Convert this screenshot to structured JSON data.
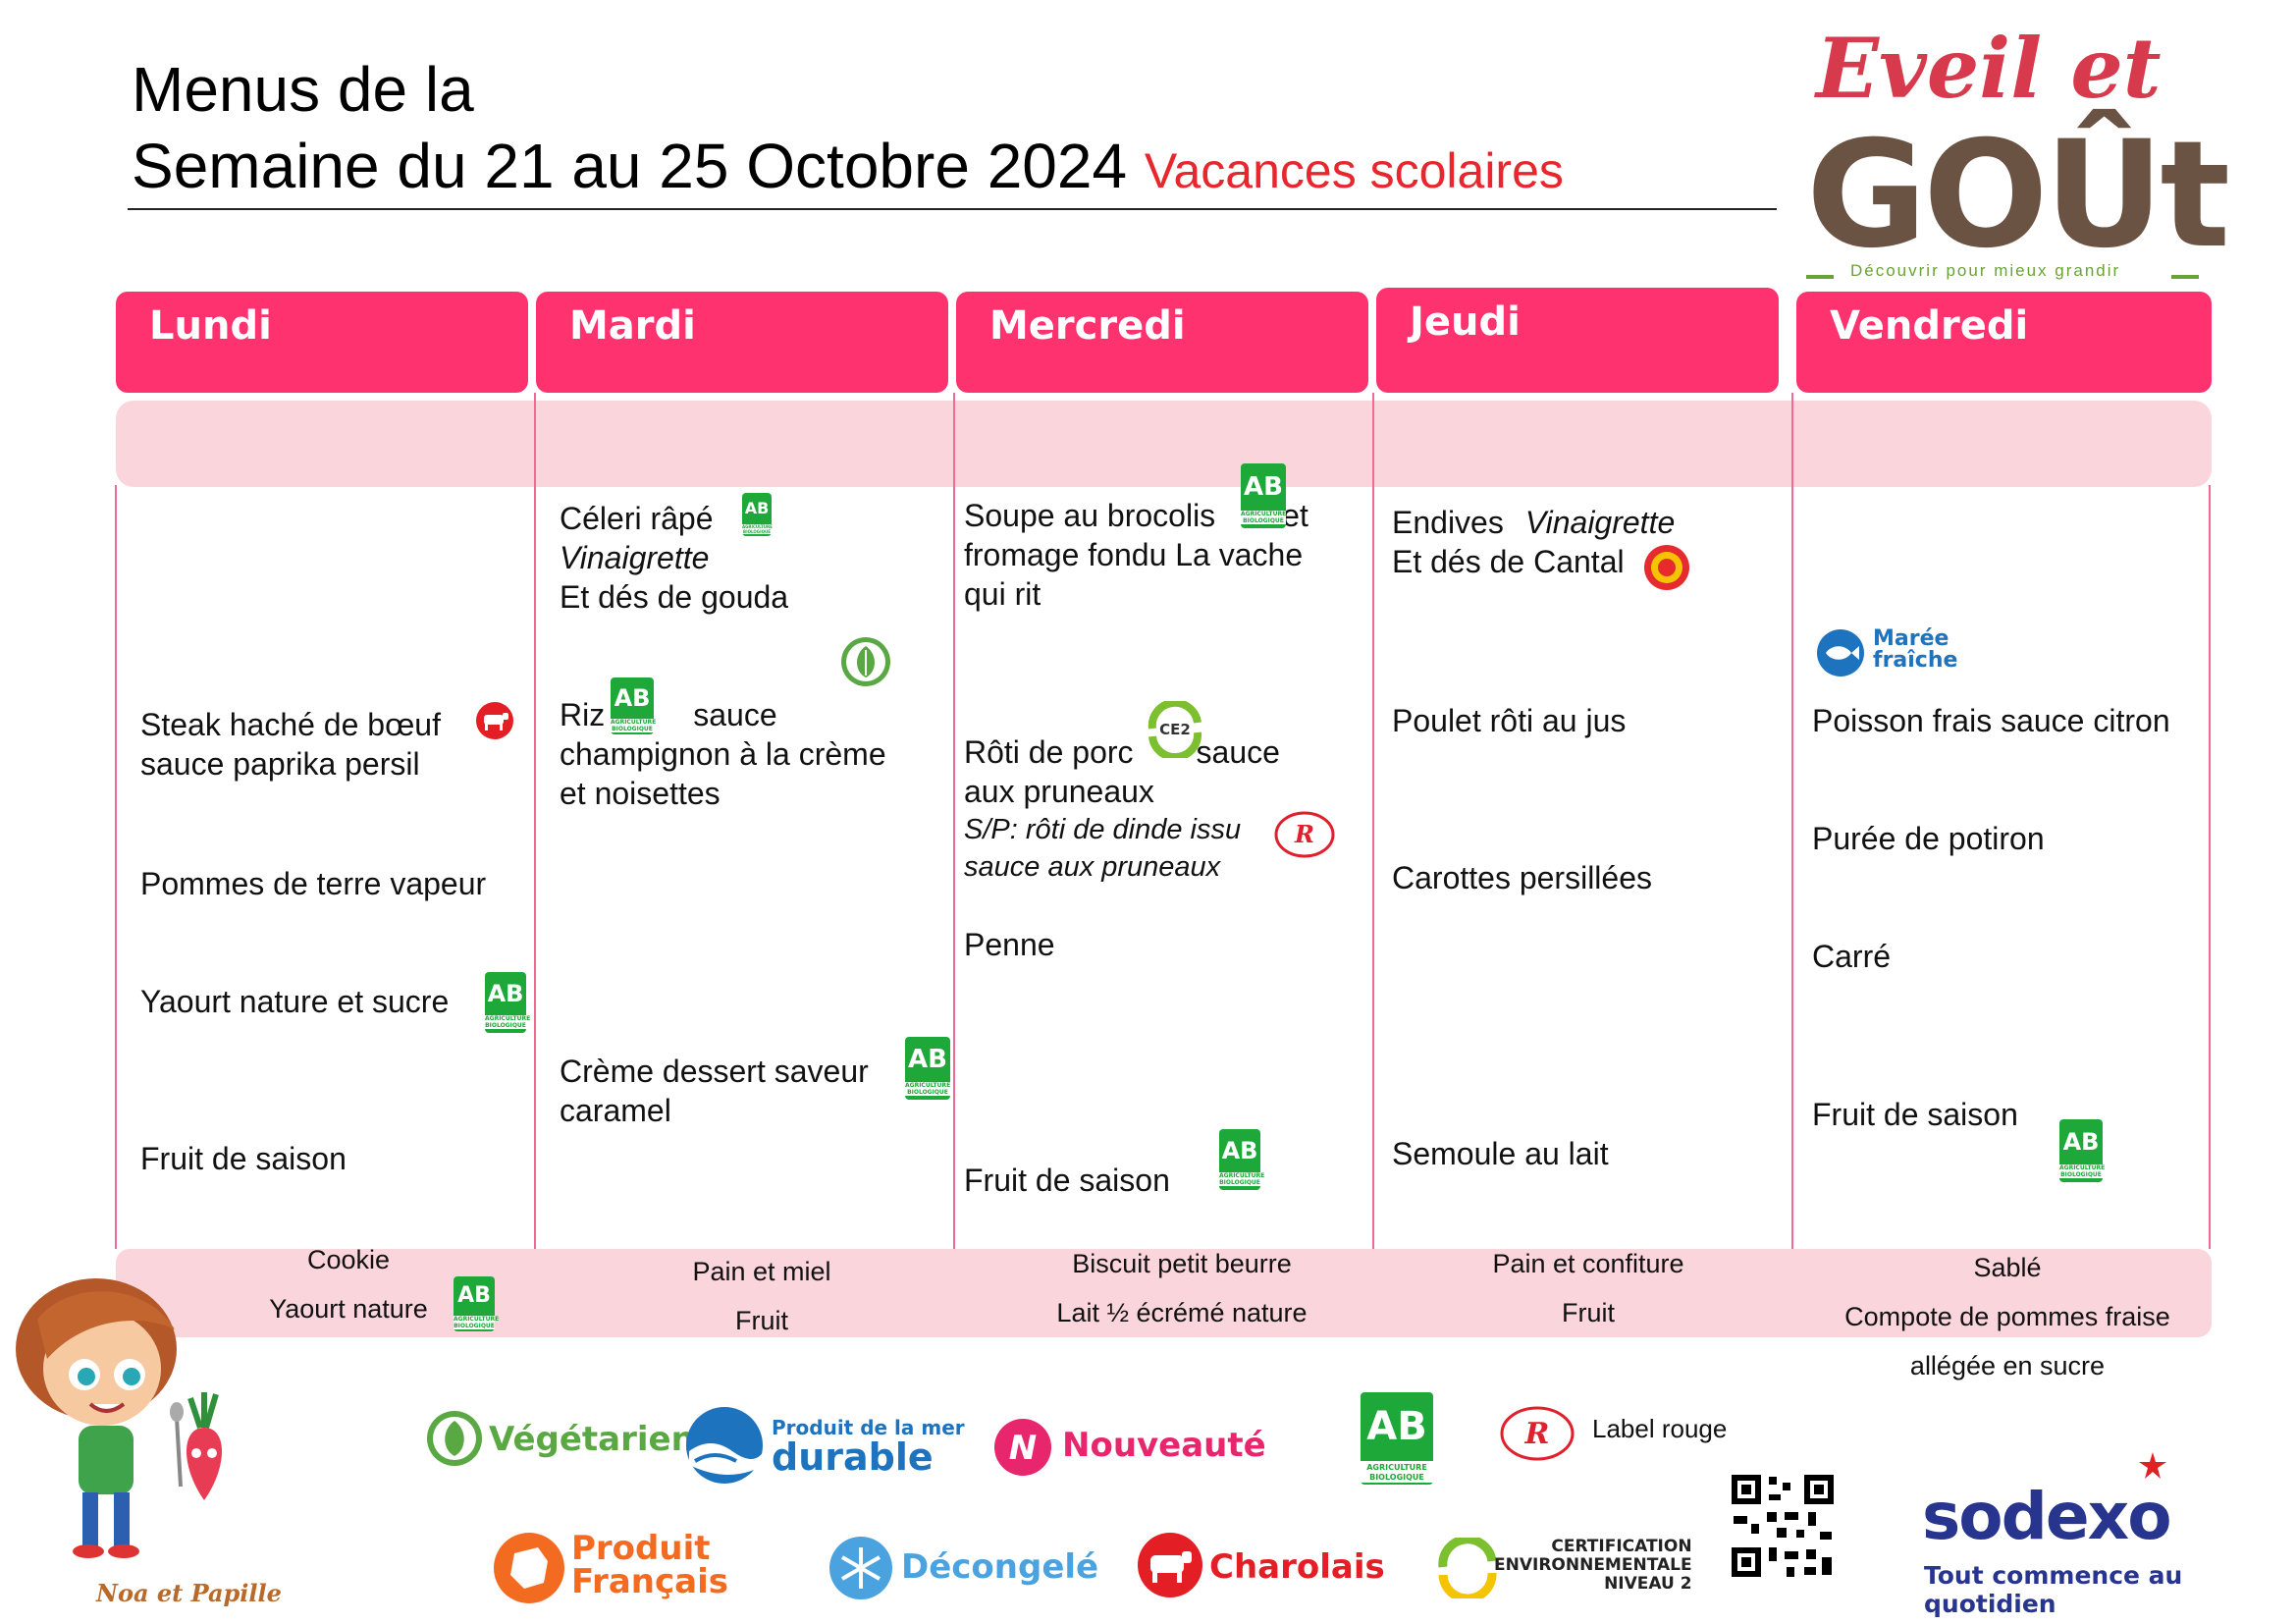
{
  "header": {
    "line1": "Menus de la",
    "line2": "Semaine du 21 au 25 Octobre 2024",
    "subtitle": "Vacances scolaires"
  },
  "logo": {
    "eveil": "Eveil et",
    "gout": "GOÛt",
    "tagline": "Découvrir pour mieux grandir"
  },
  "days": [
    "Lundi",
    "Mardi",
    "Mercredi",
    "Jeudi",
    "Vendredi"
  ],
  "menus": {
    "lundi": {
      "main1": "Steak haché de bœuf",
      "main2": "sauce paprika persil",
      "side": "Pommes de terre vapeur",
      "dairy": "Yaourt nature et sucre",
      "dessert": "Fruit de saison"
    },
    "mardi": {
      "starter1": "Céleri râpé",
      "starter2": "Vinaigrette",
      "starter3": "Et dés de gouda",
      "main1": "Riz",
      "main1b": "sauce",
      "main2": "champignon à la crème",
      "main3": "et noisettes",
      "dessert1": "Crème dessert saveur",
      "dessert2": "caramel"
    },
    "mercredi": {
      "starter1": "Soupe au brocolis",
      "starter1b": "et",
      "starter2": "fromage fondu La vache",
      "starter3": "qui rit",
      "main1": "Rôti de porc",
      "main1b": "sauce",
      "main2": "aux pruneaux",
      "alt1": "S/P: rôti de dinde issu",
      "alt2": "sauce aux pruneaux",
      "side": "Penne",
      "dessert": "Fruit de saison"
    },
    "jeudi": {
      "starter1": "Endives",
      "starter1b": "Vinaigrette",
      "starter2": "Et dés de Cantal",
      "main": "Poulet rôti au jus",
      "side": "Carottes persillées",
      "dessert": "Semoule au lait"
    },
    "vendredi": {
      "badge1": "Marée",
      "badge2": "fraîche",
      "main": "Poisson frais sauce citron",
      "side": "Purée de potiron",
      "cheese": "Carré",
      "dessert": "Fruit de saison"
    }
  },
  "snacks": {
    "lundi": [
      "Cookie",
      "Yaourt nature"
    ],
    "mardi": [
      "Pain et  miel",
      "Fruit"
    ],
    "mercredi": [
      "Biscuit petit beurre",
      "Lait ½ écrémé nature"
    ],
    "jeudi": [
      "Pain et confiture",
      "Fruit"
    ],
    "vendredi": [
      "Sablé",
      "Compote de pommes fraise",
      "allégée en sucre"
    ]
  },
  "badges": {
    "ab": "AB",
    "ab_small": "AGRICULTURE BIOLOGIQUE",
    "ce2": "CE2",
    "label_rouge_mark": "label Rouge"
  },
  "mascot": {
    "caption": "Noa et Papille"
  },
  "legend": {
    "vegetarien": "Végétarien",
    "mer_top": "Produit de la mer",
    "mer_bottom": "durable",
    "nouveaute": "Nouveauté",
    "label_rouge": "Label rouge",
    "produit": "Produit",
    "francais": "Français",
    "decongele": "Décongelé",
    "charolais": "Charolais",
    "cert1": "CERTIFICATION",
    "cert2": "ENVIRONNEMENTALE",
    "cert3": "NIVEAU 2"
  },
  "sodexo": {
    "name": "sodexo",
    "tagline": "Tout commence au quotidien"
  },
  "colors": {
    "pink": "#ff3270",
    "light_pink": "#fbd5dc",
    "green": "#1fa83a",
    "red": "#e8262d"
  }
}
